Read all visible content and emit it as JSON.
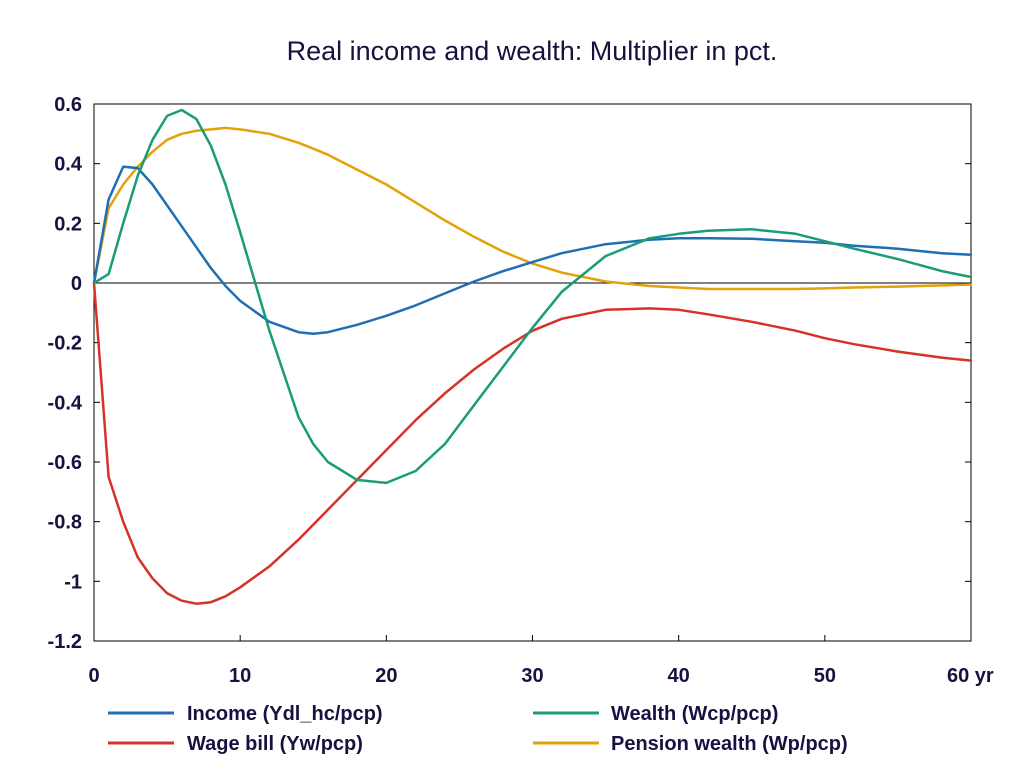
{
  "chart_data": {
    "type": "line",
    "title": "Real income and wealth: Multiplier in pct.",
    "xlabel": "",
    "ylabel": "",
    "xlim": [
      0,
      60
    ],
    "ylim": [
      -1.2,
      0.6
    ],
    "x_ticks": [
      0,
      10,
      20,
      30,
      40,
      50,
      60
    ],
    "x_tick_labels": [
      "0",
      "10",
      "20",
      "30",
      "40",
      "50",
      "60 yr"
    ],
    "y_ticks": [
      0.6,
      0.4,
      0.2,
      0,
      -0.2,
      -0.4,
      -0.6,
      -0.8,
      -1,
      -1.2
    ],
    "y_tick_labels": [
      "0.6",
      "0.4",
      "0.2",
      "0",
      "-0.2",
      "-0.4",
      "-0.6",
      "-0.8",
      "-1",
      "-1.2"
    ],
    "grid": false,
    "legend_position": "bottom",
    "x": [
      0,
      1,
      2,
      3,
      4,
      5,
      6,
      7,
      8,
      9,
      10,
      12,
      14,
      15,
      16,
      18,
      20,
      22,
      24,
      26,
      28,
      30,
      32,
      35,
      38,
      40,
      42,
      45,
      48,
      50,
      52,
      55,
      58,
      60
    ],
    "series": [
      {
        "name": "Income (Ydl_hc/pcp)",
        "color": "#1f6fb5",
        "values": [
          0,
          0.28,
          0.39,
          0.385,
          0.33,
          0.26,
          0.19,
          0.12,
          0.05,
          -0.01,
          -0.06,
          -0.13,
          -0.165,
          -0.17,
          -0.165,
          -0.14,
          -0.11,
          -0.075,
          -0.035,
          0.005,
          0.04,
          0.07,
          0.1,
          0.13,
          0.145,
          0.15,
          0.15,
          0.148,
          0.14,
          0.135,
          0.125,
          0.115,
          0.1,
          0.095
        ]
      },
      {
        "name": "Wealth (Wcp/pcp)",
        "color": "#1a9c78",
        "values": [
          0,
          0.03,
          0.2,
          0.36,
          0.48,
          0.56,
          0.58,
          0.55,
          0.46,
          0.33,
          0.17,
          -0.16,
          -0.45,
          -0.54,
          -0.6,
          -0.66,
          -0.67,
          -0.63,
          -0.54,
          -0.41,
          -0.28,
          -0.15,
          -0.03,
          0.09,
          0.15,
          0.165,
          0.175,
          0.18,
          0.165,
          0.14,
          0.115,
          0.08,
          0.04,
          0.02
        ]
      },
      {
        "name": "Wage bill (Yw/pcp)",
        "color": "#d63227",
        "values": [
          0,
          -0.65,
          -0.8,
          -0.92,
          -0.99,
          -1.04,
          -1.065,
          -1.075,
          -1.07,
          -1.05,
          -1.02,
          -0.95,
          -0.86,
          -0.81,
          -0.76,
          -0.66,
          -0.56,
          -0.46,
          -0.37,
          -0.29,
          -0.22,
          -0.16,
          -0.12,
          -0.09,
          -0.085,
          -0.09,
          -0.105,
          -0.13,
          -0.16,
          -0.185,
          -0.205,
          -0.23,
          -0.25,
          -0.26
        ]
      },
      {
        "name": "Pension wealth (Wp/pcp)",
        "color": "#e3a10b",
        "values": [
          0,
          0.25,
          0.33,
          0.39,
          0.44,
          0.48,
          0.5,
          0.51,
          0.515,
          0.52,
          0.515,
          0.5,
          0.47,
          0.45,
          0.43,
          0.38,
          0.33,
          0.27,
          0.21,
          0.155,
          0.105,
          0.065,
          0.035,
          0.005,
          -0.01,
          -0.015,
          -0.02,
          -0.02,
          -0.02,
          -0.018,
          -0.015,
          -0.012,
          -0.008,
          -0.005
        ]
      }
    ],
    "legend_layout": [
      [
        "Income (Ydl_hc/pcp)",
        "Wealth (Wcp/pcp)"
      ],
      [
        "Wage bill (Yw/pcp)",
        "Pension wealth (Wp/pcp)"
      ]
    ]
  }
}
